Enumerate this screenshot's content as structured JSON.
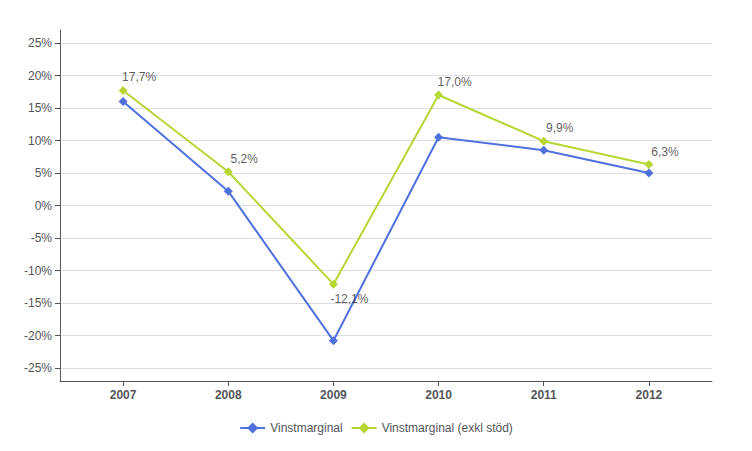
{
  "chart_data": {
    "type": "line",
    "x": [
      2007,
      2008,
      2009,
      2010,
      2011,
      2012
    ],
    "series": [
      {
        "name": "Vinstmarginal",
        "marker": "diamond",
        "values": [
          0.16,
          0.022,
          -0.208,
          0.105,
          0.085,
          0.05
        ]
      },
      {
        "name": "Vinstmarginal (exkl stöd)",
        "marker": "diamond",
        "values": [
          0.177,
          0.052,
          -0.121,
          0.17,
          0.099,
          0.063
        ]
      }
    ],
    "annotations": [
      {
        "x": 2007,
        "y": 0.177,
        "text": "17,7%"
      },
      {
        "x": 2008,
        "y": 0.052,
        "text": "5,2%"
      },
      {
        "x": 2009,
        "y": -0.121,
        "text": "-12,1%"
      },
      {
        "x": 2010,
        "y": 0.17,
        "text": "17,0%"
      },
      {
        "x": 2011,
        "y": 0.099,
        "text": "9,9%"
      },
      {
        "x": 2012,
        "y": 0.063,
        "text": "6,3%"
      }
    ],
    "xlim": [
      2006.4,
      2012.6
    ],
    "xticks": [
      2007,
      2008,
      2009,
      2010,
      2011,
      2012
    ],
    "ylim": [
      -0.27,
      0.27
    ],
    "yticks": [
      {
        "value": -0.25,
        "label": "-25%"
      },
      {
        "value": -0.2,
        "label": "-20%"
      },
      {
        "value": -0.15,
        "label": "-15%"
      },
      {
        "value": -0.1,
        "label": "-10%"
      },
      {
        "value": -0.05,
        "label": "-5%"
      },
      {
        "value": 0.0,
        "label": "0%"
      },
      {
        "value": 0.05,
        "label": "5%"
      },
      {
        "value": 0.1,
        "label": "10%"
      },
      {
        "value": 0.15,
        "label": "15%"
      },
      {
        "value": 0.2,
        "label": "20%"
      },
      {
        "value": 0.25,
        "label": "25%"
      }
    ],
    "grid": true,
    "legend": "bottom"
  }
}
